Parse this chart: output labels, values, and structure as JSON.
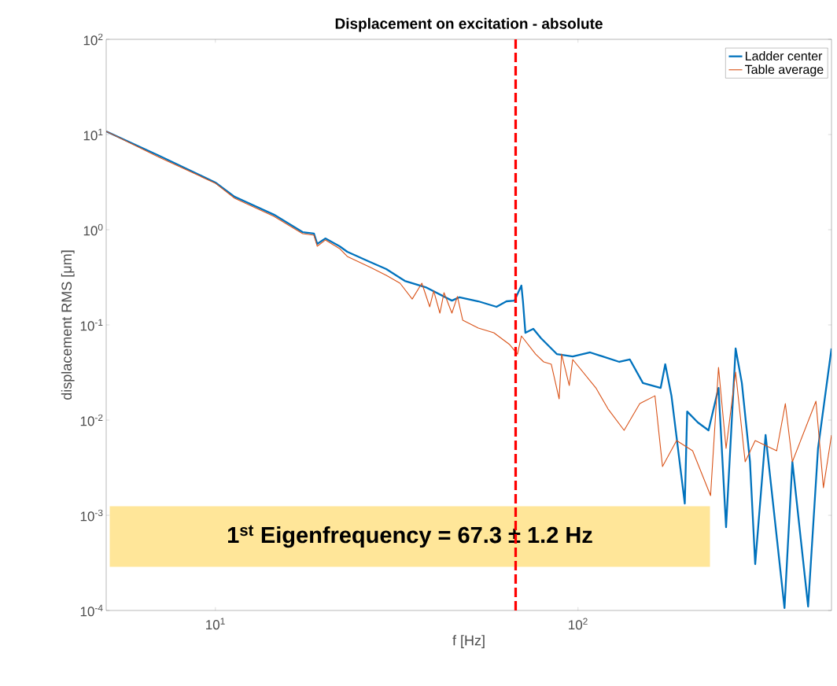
{
  "chart_data": {
    "type": "line",
    "title": "Displacement on excitation - absolute",
    "xlabel": "f [Hz]",
    "ylabel": "displacement RMS [μm]",
    "log": "xy",
    "legend": "top right",
    "xlim": [
      5,
      500
    ],
    "ylim": [
      0.0001,
      100
    ],
    "xticks": [
      {
        "value": 10,
        "label": "10$^{1}$"
      },
      {
        "value": 100,
        "label": "10$^{2}$"
      }
    ],
    "yticks": [
      {
        "value": 0.0001,
        "label": "10$^{-4}$"
      },
      {
        "value": 0.001,
        "label": "10$^{-3}$"
      },
      {
        "value": 0.01,
        "label": "10$^{-2}$"
      },
      {
        "value": 0.1,
        "label": "10$^{-1}$"
      },
      {
        "value": 1,
        "label": "10$^{0}$"
      },
      {
        "value": 10,
        "label": "10$^{1}$"
      },
      {
        "value": 100,
        "label": "10$^{2}$"
      }
    ],
    "series": [
      {
        "name": "Ladder center",
        "color": "#0072bd",
        "x": [
          5,
          7,
          10,
          11.3,
          14.5,
          17.4,
          18.7,
          19.1,
          20.1,
          22,
          23.1,
          26.4,
          29.6,
          33.3,
          38,
          44.9,
          47.1,
          53.1,
          59.6,
          63.5,
          66.8,
          69.8,
          70.5,
          71.6,
          75.3,
          79.1,
          87.4,
          96.7,
          108,
          130,
          139,
          151,
          169,
          174,
          181,
          197,
          200,
          214,
          229,
          244,
          256,
          272,
          283,
          298,
          308,
          329,
          371,
          390,
          431,
          459,
          500
        ],
        "values": [
          10.8,
          5.98,
          3.13,
          2.22,
          1.44,
          0.944,
          0.91,
          0.71,
          0.81,
          0.67,
          0.587,
          0.467,
          0.386,
          0.29,
          0.249,
          0.18,
          0.195,
          0.177,
          0.155,
          0.177,
          0.18,
          0.259,
          0.177,
          0.0826,
          0.091,
          0.0724,
          0.0494,
          0.0467,
          0.0514,
          0.0409,
          0.0433,
          0.0245,
          0.0218,
          0.0386,
          0.018,
          0.00133,
          0.0123,
          0.00944,
          0.00781,
          0.0218,
          0.00075,
          0.0565,
          0.0245,
          0.00365,
          0.000307,
          0.00697,
          0.000106,
          0.00365,
          0.00011,
          0.00504,
          0.0565
        ]
      },
      {
        "name": "Table average",
        "color": "#d95319",
        "x": [
          5,
          7,
          10,
          11.3,
          14.5,
          17.4,
          18.7,
          19.1,
          20.1,
          22,
          23.1,
          26.8,
          29.6,
          32.3,
          34.9,
          37.1,
          39,
          40,
          41.6,
          42.7,
          44.9,
          46.5,
          48.1,
          53.1,
          58.6,
          64.8,
          68.1,
          69.8,
          76.4,
          80.4,
          84.4,
          88.7,
          90.1,
          94.6,
          96.7,
          112,
          121,
          134,
          148,
          163,
          171,
          187,
          207,
          232,
          244,
          256,
          272,
          289,
          308,
          353,
          373,
          390,
          453,
          475,
          500
        ],
        "values": [
          10.8,
          5.75,
          3.08,
          2.14,
          1.38,
          0.91,
          0.875,
          0.67,
          0.78,
          0.634,
          0.524,
          0.401,
          0.332,
          0.274,
          0.187,
          0.274,
          0.155,
          0.227,
          0.133,
          0.218,
          0.133,
          0.199,
          0.112,
          0.0927,
          0.0826,
          0.0621,
          0.0494,
          0.0766,
          0.0494,
          0.0409,
          0.0386,
          0.0167,
          0.0494,
          0.0231,
          0.0433,
          0.0218,
          0.0131,
          0.00781,
          0.0149,
          0.018,
          0.00325,
          0.0061,
          0.00476,
          0.00161,
          0.0358,
          0.00504,
          0.0319,
          0.00365,
          0.0061,
          0.00476,
          0.0149,
          0.00365,
          0.0158,
          0.00195,
          0.00697
        ]
      }
    ],
    "ref_lines": [
      {
        "axis": "x",
        "value": 67.3,
        "color": "#ff0000",
        "line_style": "dashed"
      }
    ],
    "annotations": [
      "**1$^{st}$ Eigenfrequency = 67.3 ± 1.2 Hz**"
    ]
  }
}
